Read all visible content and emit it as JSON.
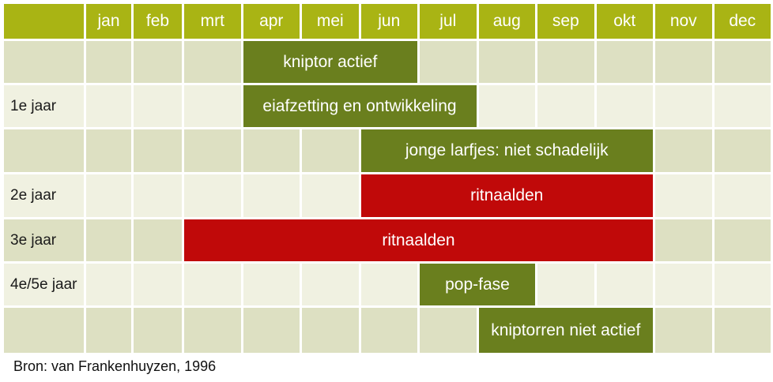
{
  "chart_data": {
    "type": "bar",
    "subtype": "gantt-calendar",
    "description": "Life-cycle calendar (Gantt) of kniptor/ritnaalden activity per month over multiple years",
    "months": [
      "jan",
      "feb",
      "mrt",
      "apr",
      "mei",
      "jun",
      "jul",
      "aug",
      "sep",
      "okt",
      "nov",
      "dec"
    ],
    "rows": [
      {
        "row_label": "",
        "bar_label": "kniptor actief",
        "start_month": "apr",
        "end_month": "jun",
        "bar_color": "green"
      },
      {
        "row_label": "1e jaar",
        "bar_label": "eiafzetting en ontwikkeling",
        "start_month": "apr",
        "end_month": "jul",
        "bar_color": "green"
      },
      {
        "row_label": "",
        "bar_label": "jonge larfjes: niet schadelijk",
        "start_month": "jun",
        "end_month": "okt",
        "bar_color": "green"
      },
      {
        "row_label": "2e jaar",
        "bar_label": "ritnaalden",
        "start_month": "jun",
        "end_month": "okt",
        "bar_color": "red"
      },
      {
        "row_label": "3e jaar",
        "bar_label": "ritnaalden",
        "start_month": "mrt",
        "end_month": "okt",
        "bar_color": "red"
      },
      {
        "row_label": "4e/5e jaar",
        "bar_label": "pop-fase",
        "start_month": "jul",
        "end_month": "aug",
        "bar_color": "green"
      },
      {
        "row_label": "",
        "bar_label": "kniptorren niet actief",
        "start_month": "aug",
        "end_month": "okt",
        "bar_color": "green"
      }
    ],
    "source": "Bron: van Frankenhuyzen, 1996",
    "legend": "none",
    "grid": "white cell separators, alternating row stripes",
    "colors": {
      "header_bg": "#a9b414",
      "bar_green": "#6a7f1e",
      "bar_red": "#c00909",
      "row_stripe_dark": "#dde0c2",
      "row_stripe_light": "#f0f1e1",
      "grid_line": "#ffffff",
      "text_on_bars": "#ffffff",
      "label_text": "#1a1a1a"
    }
  }
}
